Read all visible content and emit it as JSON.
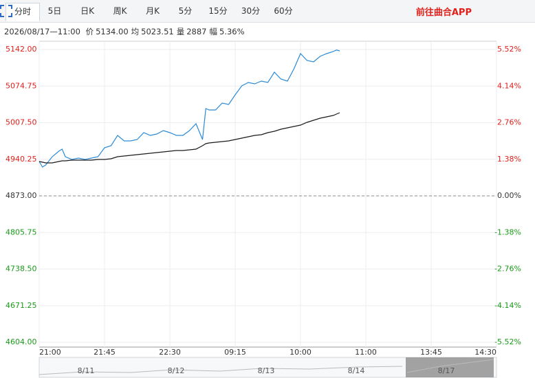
{
  "tabs": [
    "分时",
    "5日",
    "日K",
    "周K",
    "月K",
    "5分",
    "15分",
    "30分",
    "60分"
  ],
  "active_tab": 0,
  "app_link": "前往曲合APP",
  "info": {
    "time": "2026/08/17—11:00",
    "items": [
      {
        "label": "价",
        "value": "5134.00"
      },
      {
        "label": "均",
        "value": "5023.51"
      },
      {
        "label": "量",
        "value": "2887"
      },
      {
        "label": "幅",
        "value": "5.36%"
      }
    ]
  },
  "chart_data": {
    "type": "line",
    "x": [
      0,
      0.05,
      0.1,
      0.2,
      0.3,
      0.35,
      0.4,
      0.5,
      0.6,
      0.7,
      0.8,
      0.9,
      1.0,
      1.1,
      1.2,
      1.3,
      1.4,
      1.5,
      1.6,
      1.7,
      1.8,
      1.9,
      2.0,
      2.1,
      2.2,
      2.3,
      2.4,
      2.5,
      2.55,
      2.6,
      2.7,
      2.8,
      2.9,
      3.0,
      3.1,
      3.2,
      3.3,
      3.4,
      3.5,
      3.6,
      3.7,
      3.8,
      3.9,
      4.0,
      4.1,
      4.2,
      4.3,
      4.4,
      4.5,
      4.55,
      4.6
    ],
    "series": [
      {
        "name": "价",
        "color": "#2b8ad6",
        "values": [
          4936.1,
          4926.0,
          4929.8,
          4945.0,
          4955.1,
          4958.9,
          4945.0,
          4939.9,
          4942.5,
          4939.9,
          4942.5,
          4945.0,
          4961.4,
          4965.2,
          4984.1,
          4974.0,
          4974.0,
          4976.6,
          4989.2,
          4984.1,
          4986.7,
          4993.0,
          4989.2,
          4984.1,
          4984.1,
          4993.0,
          5005.6,
          4976.6,
          5033.4,
          5030.9,
          5030.9,
          5043.5,
          5041.0,
          5058.6,
          5075.1,
          5081.4,
          5078.9,
          5083.9,
          5081.4,
          5100.3,
          5087.7,
          5083.9,
          5106.6,
          5134.4,
          5121.8,
          5119.3,
          5129.4,
          5134.4,
          5138.2,
          5141.0,
          5139.5
        ]
      },
      {
        "name": "均",
        "color": "#1a1a1a",
        "values": [
          4936.1,
          4934.9,
          4933.6,
          4933.6,
          4936.1,
          4937.4,
          4937.4,
          4938.7,
          4938.7,
          4938.7,
          4938.7,
          4939.9,
          4939.9,
          4941.2,
          4945.0,
          4946.3,
          4947.5,
          4948.8,
          4950.0,
          4951.3,
          4952.6,
          4953.8,
          4955.1,
          4956.4,
          4956.4,
          4957.6,
          4958.9,
          4965.2,
          4969.0,
          4970.2,
          4971.5,
          4972.8,
          4974.0,
          4976.6,
          4979.1,
          4981.6,
          4984.1,
          4985.4,
          4989.2,
          4991.7,
          4995.5,
          4998.0,
          5000.6,
          5003.1,
          5008.1,
          5011.9,
          5015.7,
          5018.2,
          5020.8,
          5023.3,
          5025.8
        ]
      }
    ],
    "xlim": [
      0,
      7
    ],
    "xticks": [
      {
        "value": 0,
        "label": "21:00"
      },
      {
        "value": 1,
        "label": "21:45"
      },
      {
        "value": 2,
        "label": "22:30"
      },
      {
        "value": 3,
        "label": "09:15"
      },
      {
        "value": 4,
        "label": "10:00"
      },
      {
        "value": 5,
        "label": "11:00"
      },
      {
        "value": 6,
        "label": "13:45"
      },
      {
        "value": 7,
        "label": "14:30"
      }
    ],
    "ylim": [
      4604,
      5142
    ],
    "yticks": [
      {
        "value": 5142,
        "label": "5142.00"
      },
      5074.75,
      {
        "value": 5007.5,
        "label": "5007.50"
      },
      4940.25,
      {
        "value": 4873,
        "label": "4873.00"
      },
      4805.75,
      {
        "value": 4738.5,
        "label": "4738.50"
      },
      4671.25,
      {
        "value": 4604,
        "label": "4604.00"
      }
    ],
    "y2lim": [
      -5.52,
      5.52
    ],
    "y2ticks": [
      {
        "value": 5.52,
        "label": "5.52%"
      },
      {
        "value": 4.14,
        "label": "4.14%"
      },
      {
        "value": 2.76,
        "label": "2.76%"
      },
      {
        "value": 1.38,
        "label": "1.38%"
      },
      {
        "value": 0,
        "label": "0.00%"
      },
      {
        "value": -1.38,
        "label": "-1.38%"
      },
      {
        "value": -2.76,
        "label": "-2.76%"
      },
      {
        "value": -4.14,
        "label": "-4.14%"
      },
      {
        "value": -5.52,
        "label": "-5.52%"
      }
    ],
    "grid": true,
    "up_color": "#e0201b",
    "down_color": "#1a9a1a",
    "flat_color": "#333333"
  },
  "navigator": {
    "labels": [
      "8/11",
      "8/12",
      "8/13",
      "8/14",
      "8/17"
    ]
  }
}
